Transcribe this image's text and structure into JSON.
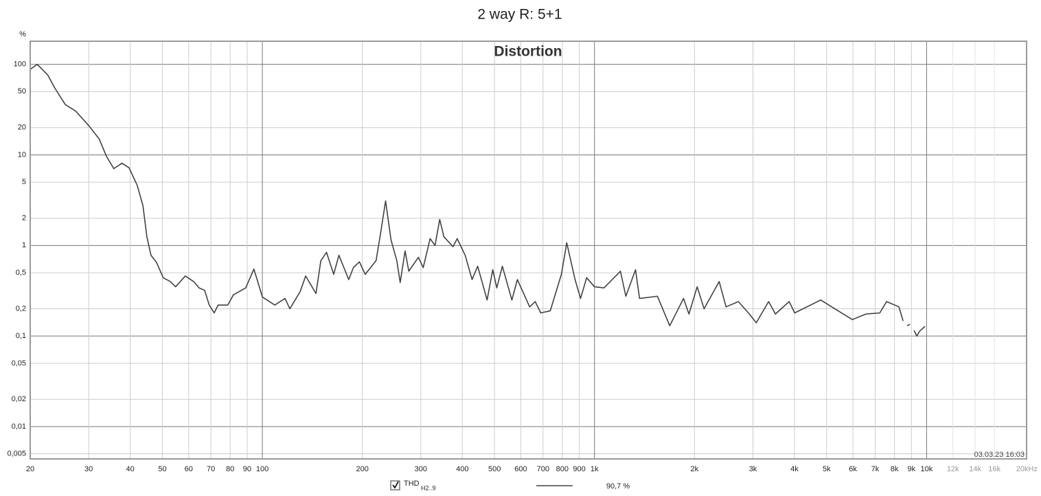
{
  "chart_data": {
    "type": "line",
    "title": "2 way R: 5+1",
    "subtitle": "Distortion",
    "y_label": "%",
    "annotation": "03.03.23 16:03",
    "xscale": "log",
    "yscale": "log",
    "grid": true,
    "xlim": [
      20,
      20000
    ],
    "ylim": [
      0.0044,
      180
    ],
    "xticks": [
      20,
      30,
      40,
      50,
      60,
      70,
      80,
      90,
      100,
      200,
      300,
      400,
      500,
      600,
      700,
      800,
      900,
      {
        "value": 1000,
        "label": "1k"
      },
      {
        "value": 2000,
        "label": "2k"
      },
      {
        "value": 3000,
        "label": "3k"
      },
      {
        "value": 4000,
        "label": "4k"
      },
      {
        "value": 5000,
        "label": "5k"
      },
      {
        "value": 6000,
        "label": "6k"
      },
      {
        "value": 7000,
        "label": "7k"
      },
      {
        "value": 8000,
        "label": "8k"
      },
      {
        "value": 9000,
        "label": "9k"
      },
      {
        "value": 10000,
        "label": "10k"
      },
      {
        "value": 12000,
        "label": "12k"
      },
      {
        "value": 14000,
        "label": "14k"
      },
      {
        "value": 16000,
        "label": "16k"
      },
      {
        "value": 20000,
        "label": "20kHz"
      }
    ],
    "yticks": [
      100,
      50,
      20,
      10,
      5,
      2,
      1,
      {
        "value": 0.5,
        "label": "0,5"
      },
      {
        "value": 0.2,
        "label": "0,2"
      },
      {
        "value": 0.1,
        "label": "0,1"
      },
      {
        "value": 0.05,
        "label": "0,05"
      },
      {
        "value": 0.02,
        "label": "0,02"
      },
      {
        "value": 0.01,
        "label": "0,01"
      },
      {
        "value": 0.005,
        "label": "0,005"
      }
    ],
    "x": [
      20,
      21,
      22.6,
      23.7,
      25.5,
      27.4,
      30.1,
      32.3,
      33.9,
      35.7,
      37.8,
      39.7,
      42,
      43.7,
      44.9,
      46.2,
      48,
      50.3,
      52.8,
      54.8,
      58.6,
      62.1,
      64.5,
      67,
      69.2,
      71.6,
      73.6,
      78.7,
      81.8,
      89.1,
      94.3,
      100,
      109,
      117,
      121,
      130,
      135,
      145,
      150,
      156,
      164,
      170,
      182,
      188,
      196,
      204,
      220,
      227,
      235,
      244,
      254,
      260,
      269,
      276,
      295,
      305,
      320,
      331,
      342,
      352,
      375,
      386,
      408,
      428,
      445,
      475,
      494,
      508,
      528,
      564,
      586,
      638,
      663,
      689,
      736,
      795,
      825,
      874,
      908,
      947,
      1000,
      1068,
      1197,
      1243,
      1329,
      1367,
      1547,
      1685,
      1854,
      1925,
      2038,
      2138,
      2374,
      2490,
      2712,
      2926,
      3070,
      3344,
      3506,
      3856,
      4007,
      4800,
      5180,
      5974,
      6570,
      7228,
      7579,
      8256,
      8496,
      8620,
      8741,
      8912,
      9040,
      9170,
      9344,
      9524,
      9892
    ],
    "series": [
      {
        "name": "THD",
        "name_sub": "H2..9",
        "legend_value": "90,7 %",
        "color": "#404040",
        "values": [
          88,
          100,
          76,
          55,
          36,
          30.5,
          20.8,
          14.9,
          9.7,
          7.05,
          8.1,
          7.2,
          4.6,
          2.75,
          1.25,
          0.78,
          0.65,
          0.44,
          0.4,
          0.35,
          0.46,
          0.4,
          0.34,
          0.32,
          0.22,
          0.18,
          0.22,
          0.22,
          0.285,
          0.34,
          0.55,
          0.27,
          0.22,
          0.26,
          0.2,
          0.31,
          0.46,
          0.295,
          0.68,
          0.84,
          0.48,
          0.78,
          0.42,
          0.57,
          0.66,
          0.48,
          0.68,
          1.37,
          3.1,
          1.15,
          0.68,
          0.39,
          0.87,
          0.52,
          0.74,
          0.57,
          1.19,
          1.0,
          1.94,
          1.25,
          0.97,
          1.19,
          0.78,
          0.42,
          0.59,
          0.25,
          0.54,
          0.34,
          0.59,
          0.25,
          0.42,
          0.21,
          0.24,
          0.18,
          0.19,
          0.48,
          1.07,
          0.42,
          0.26,
          0.44,
          0.35,
          0.34,
          0.52,
          0.275,
          0.54,
          0.26,
          0.275,
          0.13,
          0.26,
          0.175,
          0.35,
          0.2,
          0.4,
          0.21,
          0.24,
          0.175,
          0.14,
          0.24,
          0.175,
          0.24,
          0.18,
          0.25,
          0.21,
          0.152,
          0.175,
          0.18,
          0.24,
          0.21,
          0.147,
          null,
          0.13,
          0.135,
          null,
          0.115,
          0.1,
          0.113,
          0.128
        ]
      }
    ]
  }
}
